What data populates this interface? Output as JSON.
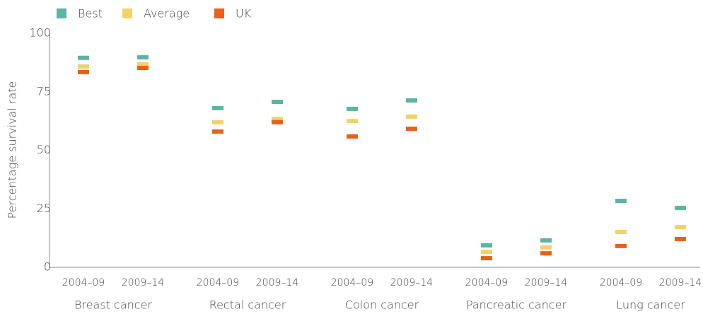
{
  "chart_data": {
    "type": "dot",
    "y_label": "Percentage survival rate",
    "categories": [
      "2004–09",
      "2009–14",
      "2004–09",
      "2009–14",
      "2004–09",
      "2009–14",
      "2004–09",
      "2009–14",
      "2004–09",
      "2009–14"
    ],
    "groups": [
      "Breast cancer",
      "Rectal cancer",
      "Colon cancer",
      "Pancreatic cancer",
      "Lung cancer"
    ],
    "series": [
      {
        "name": "Best",
        "color": "#5bb5a2",
        "values": [
          89.5,
          89.7,
          68,
          70.7,
          67.7,
          71.3,
          9.4,
          11.5,
          28.4,
          25.4
        ]
      },
      {
        "name": "Average",
        "color": "#f2d265",
        "values": [
          85.8,
          86.7,
          62,
          63.4,
          62.5,
          64.4,
          6.6,
          8.5,
          15.1,
          17.2
        ]
      },
      {
        "name": "UK",
        "color": "#e8601c",
        "values": [
          83.4,
          85.2,
          58,
          62,
          55.9,
          59.2,
          3.9,
          6,
          9.1,
          12.1
        ]
      }
    ],
    "ylim": [
      0,
      100
    ],
    "yticks": [
      0,
      25,
      50,
      75,
      100
    ],
    "legend": "top-left"
  }
}
